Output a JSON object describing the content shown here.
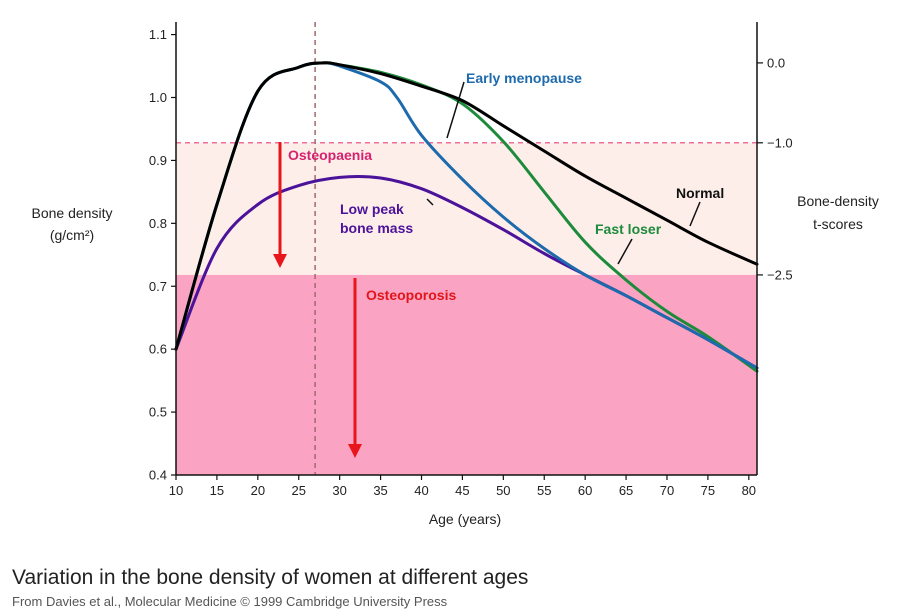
{
  "chart_data": {
    "type": "line",
    "xlabel": "Age (years)",
    "ylabel_line1": "Bone density",
    "ylabel_line2": "(g/cm²)",
    "y2label_line1": "Bone-density",
    "y2label_line2": "t-scores",
    "xlim": [
      10,
      81
    ],
    "ylim": [
      0.4,
      1.12
    ],
    "x_ticks": [
      10,
      15,
      20,
      25,
      30,
      35,
      40,
      45,
      50,
      55,
      60,
      65,
      70,
      75,
      80
    ],
    "y_ticks": [
      0.4,
      0.5,
      0.6,
      0.7,
      0.8,
      0.9,
      1.0,
      1.1
    ],
    "y_tick_labels": [
      "0.4",
      "0.5",
      "0.6",
      "0.7",
      "0.8",
      "0.9",
      "1.0",
      "1.1"
    ],
    "y2_ticks": [
      {
        "value": 1.055,
        "label": "0.0"
      },
      {
        "value": 0.928,
        "label": "−1.0"
      },
      {
        "value": 0.718,
        "label": "−2.5"
      }
    ],
    "peak_age_marker": 27,
    "zones": {
      "osteopaenia": {
        "from": 0.718,
        "to": 0.928,
        "label": "Osteopaenia",
        "color": "#fdeeea"
      },
      "osteoporosis": {
        "from": 0.4,
        "to": 0.718,
        "label": "Osteoporosis",
        "color": "#fba3c2"
      }
    },
    "series": [
      {
        "name": "Normal",
        "color": "#000000",
        "x": [
          10,
          15,
          20,
          25,
          28,
          30,
          35,
          40,
          45,
          50,
          55,
          60,
          65,
          70,
          75,
          81
        ],
        "y": [
          0.6,
          0.83,
          1.01,
          1.048,
          1.055,
          1.052,
          1.038,
          1.018,
          0.995,
          0.955,
          0.915,
          0.875,
          0.84,
          0.805,
          0.77,
          0.735
        ]
      },
      {
        "name": "Early menopause",
        "color": "#1d6aad",
        "x": [
          10,
          15,
          20,
          25,
          28,
          30,
          35,
          37,
          40,
          45,
          50,
          55,
          60,
          65,
          70,
          75,
          81
        ],
        "y": [
          0.6,
          0.83,
          1.01,
          1.048,
          1.055,
          1.05,
          1.025,
          1.0,
          0.94,
          0.87,
          0.81,
          0.76,
          0.718,
          0.685,
          0.65,
          0.615,
          0.57
        ]
      },
      {
        "name": "Fast loser",
        "color": "#1d8a3c",
        "x": [
          10,
          15,
          20,
          25,
          28,
          30,
          35,
          40,
          45,
          50,
          55,
          60,
          65,
          70,
          75,
          81
        ],
        "y": [
          0.6,
          0.83,
          1.01,
          1.048,
          1.055,
          1.052,
          1.04,
          1.02,
          0.99,
          0.93,
          0.85,
          0.77,
          0.71,
          0.66,
          0.62,
          0.565
        ]
      },
      {
        "name": "Low peak bone mass",
        "color": "#4b129a",
        "x": [
          10,
          15,
          20,
          25,
          30,
          35,
          40,
          45,
          50,
          55,
          60,
          65,
          70,
          75,
          81
        ],
        "y": [
          0.6,
          0.76,
          0.83,
          0.86,
          0.873,
          0.872,
          0.855,
          0.825,
          0.79,
          0.752,
          0.718,
          0.685,
          0.65,
          0.615,
          0.57
        ]
      }
    ],
    "labels": {
      "normal": "Normal",
      "early": "Early menopause",
      "fast": "Fast loser",
      "low1": "Low peak",
      "low2": "bone mass",
      "osteopaenia": "Osteopaenia",
      "osteoporosis": "Osteoporosis"
    }
  },
  "caption": "Variation in the bone density of women at different ages",
  "credit": "From Davies et al., Molecular Medicine © 1999 Cambridge University Press"
}
